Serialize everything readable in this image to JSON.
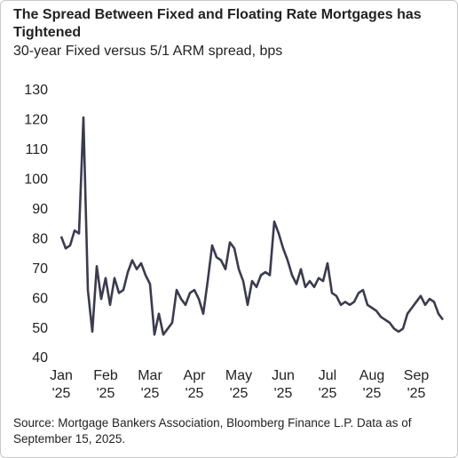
{
  "chart_data": {
    "type": "line",
    "title": "The Spread Between Fixed and Floating Rate Mortgages has Tightened",
    "subtitle": "30-year Fixed versus 5/1 ARM spread, bps",
    "source": "Source: Mortgage Bankers Association, Bloomberg Finance L.P. Data as of September 15, 2025.",
    "categories": [
      "Jan '25",
      null,
      null,
      null,
      null,
      null,
      null,
      null,
      null,
      null,
      "Feb '25",
      null,
      null,
      null,
      null,
      null,
      null,
      null,
      null,
      null,
      "Mar '25",
      null,
      null,
      null,
      null,
      null,
      null,
      null,
      null,
      null,
      "Apr '25",
      null,
      null,
      null,
      null,
      null,
      null,
      null,
      null,
      null,
      "May '25",
      null,
      null,
      null,
      null,
      null,
      null,
      null,
      null,
      null,
      "Jun '25",
      null,
      null,
      null,
      null,
      null,
      null,
      null,
      null,
      null,
      "Jul '25",
      null,
      null,
      null,
      null,
      null,
      null,
      null,
      null,
      null,
      "Aug '25",
      null,
      null,
      null,
      null,
      null,
      null,
      null,
      null,
      null,
      "Sep '25",
      null,
      null,
      null,
      null,
      null,
      null
    ],
    "values": [
      81,
      77,
      78,
      83,
      82,
      121,
      63,
      49,
      71,
      60,
      67,
      58,
      67,
      62,
      63,
      69,
      73,
      70,
      72,
      68,
      65,
      48,
      55,
      48,
      50,
      52,
      63,
      60,
      58,
      62,
      63,
      60,
      55,
      66,
      78,
      74,
      73,
      70,
      79,
      77,
      70,
      66,
      58,
      66,
      64,
      68,
      69,
      68,
      86,
      82,
      77,
      73,
      68,
      65,
      70,
      64,
      66,
      64,
      67,
      66,
      72,
      62,
      61,
      58,
      59,
      58,
      59,
      62,
      63,
      58,
      57,
      56,
      54,
      53,
      52,
      50,
      49,
      50,
      55,
      57,
      59,
      61,
      58,
      60,
      59,
      55,
      53
    ],
    "color": "#3b3b4f",
    "ylim": [
      40,
      130
    ],
    "yticks": [
      40,
      50,
      60,
      70,
      80,
      90,
      100,
      110,
      120,
      130
    ],
    "grid": false
  }
}
